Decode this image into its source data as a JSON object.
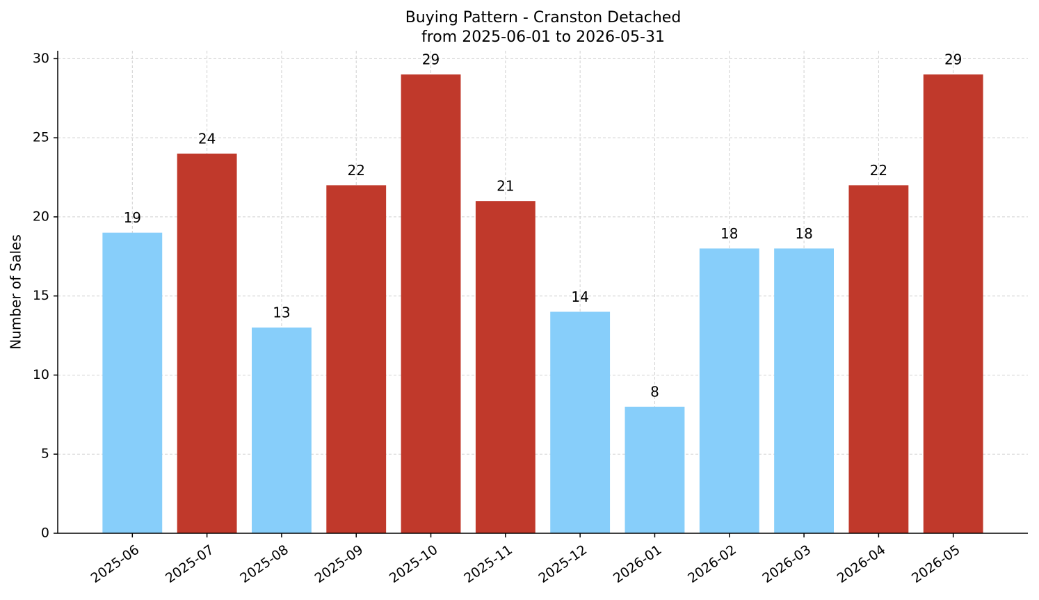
{
  "chart_data": {
    "type": "bar",
    "title": "Buying Pattern - Cranston Detached",
    "subtitle": "from 2025-06-01 to 2026-05-31",
    "y_label": "Number of Sales",
    "categories": [
      "2025-06",
      "2025-07",
      "2025-08",
      "2025-09",
      "2025-10",
      "2025-11",
      "2025-12",
      "2026-01",
      "2026-02",
      "2026-03",
      "2026-04",
      "2026-05"
    ],
    "values": [
      19,
      24,
      13,
      22,
      29,
      21,
      14,
      8,
      18,
      18,
      22,
      29
    ],
    "colors": [
      "#87cefa",
      "#c0392b",
      "#87cefa",
      "#c0392b",
      "#c0392b",
      "#c0392b",
      "#87cefa",
      "#87cefa",
      "#87cefa",
      "#87cefa",
      "#c0392b",
      "#c0392b"
    ],
    "ylim": [
      0,
      30.5
    ],
    "yticks": [
      0,
      5,
      10,
      15,
      20,
      25,
      30
    ],
    "grid": true
  }
}
